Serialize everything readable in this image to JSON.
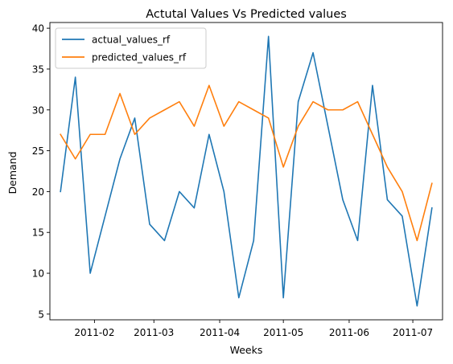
{
  "chart_data": {
    "type": "line",
    "title": "Actutal Values Vs Predicted values",
    "xlabel": "Weeks",
    "ylabel": "Demand",
    "x": [
      "2011-01-16",
      "2011-01-23",
      "2011-01-30",
      "2011-02-06",
      "2011-02-13",
      "2011-02-20",
      "2011-02-27",
      "2011-03-06",
      "2011-03-13",
      "2011-03-20",
      "2011-03-27",
      "2011-04-03",
      "2011-04-10",
      "2011-04-17",
      "2011-04-24",
      "2011-05-01",
      "2011-05-08",
      "2011-05-15",
      "2011-05-22",
      "2011-05-29",
      "2011-06-05",
      "2011-06-12",
      "2011-06-19",
      "2011-06-26",
      "2011-07-03",
      "2011-07-10"
    ],
    "xlim": [
      "2011-01-11",
      "2011-07-15"
    ],
    "ylim": [
      4.3,
      40.7
    ],
    "x_ticks": [
      {
        "value": "2011-02-01",
        "label": "2011-02"
      },
      {
        "value": "2011-03-01",
        "label": "2011-03"
      },
      {
        "value": "2011-04-01",
        "label": "2011-04"
      },
      {
        "value": "2011-05-01",
        "label": "2011-05"
      },
      {
        "value": "2011-06-01",
        "label": "2011-06"
      },
      {
        "value": "2011-07-01",
        "label": "2011-07"
      }
    ],
    "y_ticks": [
      5,
      10,
      15,
      20,
      25,
      30,
      35,
      40
    ],
    "grid": false,
    "legend": {
      "position": "top-left"
    },
    "series": [
      {
        "name": "actual_values_rf",
        "color": "#1f77b4",
        "values": [
          20,
          34,
          10,
          17,
          24,
          29,
          16,
          14,
          20,
          18,
          27,
          20,
          7,
          14,
          39,
          7,
          31,
          37,
          28,
          19,
          14,
          33,
          19,
          17,
          6,
          18
        ]
      },
      {
        "name": "predicted_values_rf",
        "color": "#ff7f0e",
        "values": [
          27,
          24,
          27,
          27,
          32,
          27,
          29,
          30,
          31,
          28,
          33,
          28,
          31,
          30,
          29,
          23,
          28,
          31,
          30,
          30,
          31,
          27,
          23,
          20,
          14,
          21
        ]
      }
    ]
  }
}
